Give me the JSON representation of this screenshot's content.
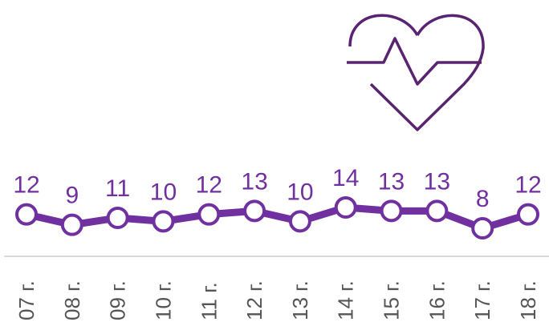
{
  "chart_data": {
    "type": "line",
    "categories": [
      "07 г.",
      "08 г.",
      "09 г.",
      "10 г.",
      "11 г.",
      "12 г.",
      "13 г.",
      "14 г.",
      "15 г.",
      "16 г.",
      "17 г.",
      "18 г."
    ],
    "values": [
      12,
      9,
      11,
      10,
      12,
      13,
      10,
      14,
      13,
      13,
      8,
      12
    ],
    "color": "#7030a0"
  }
}
